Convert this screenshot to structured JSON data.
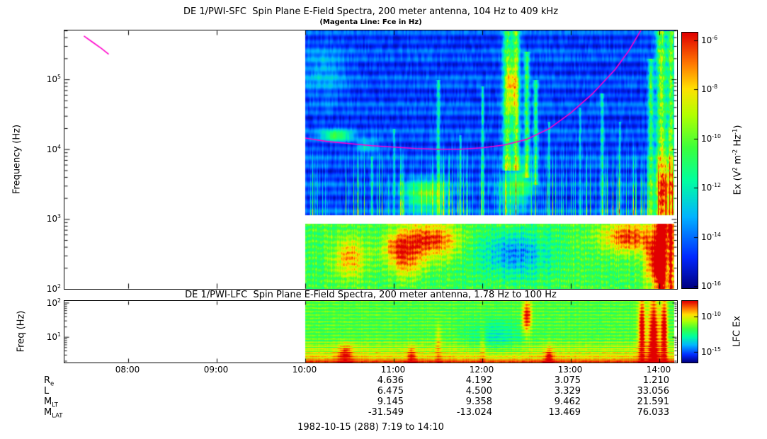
{
  "footer": {
    "date_label": "1982-10-15 (288) 7:19 to 14:10"
  },
  "colormap_stops": [
    [
      0.0,
      0,
      0,
      130
    ],
    [
      0.12,
      0,
      40,
      255
    ],
    [
      0.28,
      0,
      180,
      255
    ],
    [
      0.42,
      0,
      255,
      160
    ],
    [
      0.55,
      60,
      255,
      60
    ],
    [
      0.68,
      180,
      255,
      0
    ],
    [
      0.78,
      255,
      225,
      0
    ],
    [
      0.88,
      255,
      120,
      0
    ],
    [
      1.0,
      225,
      0,
      0
    ]
  ],
  "ephemeris": {
    "rows": [
      {
        "label": "R_e",
        "values": [
          "4.636",
          "4.192",
          "3.075",
          "1.210"
        ]
      },
      {
        "label": "L",
        "values": [
          "6.475",
          "4.500",
          "3.329",
          "33.056"
        ]
      },
      {
        "label": "M_LT",
        "values": [
          "9.145",
          "9.358",
          "9.462",
          "21.591"
        ]
      },
      {
        "label": "M_LAT",
        "values": [
          "-31.549",
          "-13.024",
          "13.469",
          "76.033"
        ]
      }
    ]
  },
  "chart_data": [
    {
      "type": "heatmap",
      "instrument": "DE 1/PWI-SFC",
      "title": "DE 1/PWI-SFC  Spin Plane E-Field Spectra, 200 meter antenna, 104 Hz to 409 kHz",
      "subtitle": "(Magenta Line: Fce in Hz)",
      "ylabel": "Frequency (Hz)",
      "ylim_log10_hz": [
        2.0,
        5.7
      ],
      "ytick_labels": [
        "10^5",
        "10^4",
        "10^3",
        "10^2"
      ],
      "ytick_log10": [
        5,
        4,
        3,
        2
      ],
      "xtick_labels": [
        "08:00",
        "09:00",
        "10:00",
        "11:00",
        "12:00",
        "13:00",
        "14:00"
      ],
      "xtick_hours": [
        8,
        9,
        10,
        11,
        12,
        13,
        14
      ],
      "x_range_hours": [
        7.28,
        14.2
      ],
      "data_hours": [
        10.0,
        14.167
      ],
      "white_gap_log10": [
        2.94,
        3.06
      ],
      "colorbar": {
        "label": "Ex (V^2 m^-2 Hz^-1)",
        "tick_labels": [
          "10^-6",
          "10^-8",
          "10^-10",
          "10^-12",
          "10^-14",
          "10^-16"
        ],
        "range_log10": [
          -16,
          -6
        ]
      },
      "fce_line": {
        "color": "#ff00cc",
        "points_t_logf": [
          [
            10.0,
            4.16
          ],
          [
            10.25,
            4.11
          ],
          [
            10.5,
            4.08
          ],
          [
            10.75,
            4.05
          ],
          [
            11.0,
            4.03
          ],
          [
            11.25,
            4.01
          ],
          [
            11.5,
            4.0
          ],
          [
            11.75,
            4.0
          ],
          [
            12.0,
            4.02
          ],
          [
            12.25,
            4.06
          ],
          [
            12.5,
            4.14
          ],
          [
            12.75,
            4.29
          ],
          [
            13.0,
            4.52
          ],
          [
            13.25,
            4.8
          ],
          [
            13.5,
            5.14
          ],
          [
            13.65,
            5.4
          ],
          [
            13.8,
            5.72
          ]
        ],
        "pre_segment_t_logf": [
          [
            7.5,
            5.62
          ],
          [
            7.6,
            5.53
          ],
          [
            7.7,
            5.44
          ],
          [
            7.78,
            5.36
          ]
        ]
      },
      "render_features": {
        "blobs": [
          [
            10.5,
            2.45,
            0.18,
            0.28,
            0.3
          ],
          [
            11.05,
            2.6,
            0.18,
            0.22,
            0.3
          ],
          [
            11.4,
            2.7,
            0.3,
            0.25,
            0.45
          ],
          [
            11.35,
            3.35,
            0.25,
            0.22,
            0.42
          ],
          [
            11.15,
            2.35,
            0.2,
            0.2,
            0.22
          ],
          [
            12.35,
            2.5,
            0.35,
            0.3,
            -0.3
          ],
          [
            12.45,
            3.5,
            0.12,
            0.3,
            0.28
          ],
          [
            12.3,
            3.4,
            0.15,
            0.3,
            0.22
          ],
          [
            13.65,
            2.75,
            0.3,
            0.22,
            0.42
          ],
          [
            13.95,
            2.4,
            0.12,
            0.35,
            0.45
          ],
          [
            14.05,
            3.4,
            0.12,
            0.5,
            0.4
          ],
          [
            10.35,
            4.2,
            0.18,
            0.08,
            0.4
          ],
          [
            10.7,
            4.05,
            0.12,
            0.1,
            0.22
          ],
          [
            10.2,
            5.1,
            0.25,
            0.35,
            0.14
          ],
          [
            12.33,
            4.9,
            0.07,
            0.4,
            0.35
          ]
        ],
        "streaks": [
          [
            10.75,
            0.015,
            3.9,
            0.25,
            3.06
          ],
          [
            11.0,
            0.012,
            4.3,
            0.28,
            3.06
          ],
          [
            11.5,
            0.02,
            5.0,
            0.33,
            3.06
          ],
          [
            11.75,
            0.012,
            4.2,
            0.28,
            3.06
          ],
          [
            12.0,
            0.015,
            4.9,
            0.33,
            3.06
          ],
          [
            12.28,
            0.05,
            5.7,
            0.5,
            3.7
          ],
          [
            12.38,
            0.04,
            5.7,
            0.55,
            3.7
          ],
          [
            12.5,
            0.03,
            5.4,
            0.45,
            3.6
          ],
          [
            12.6,
            0.025,
            5.0,
            0.4,
            3.5
          ],
          [
            12.75,
            0.012,
            4.4,
            0.28,
            3.06
          ],
          [
            13.1,
            0.012,
            4.6,
            0.25,
            3.06
          ],
          [
            13.35,
            0.02,
            4.8,
            0.3,
            3.06
          ],
          [
            13.55,
            0.012,
            4.4,
            0.25,
            3.06
          ],
          [
            13.9,
            0.03,
            5.3,
            0.45,
            3.06
          ],
          [
            14.02,
            0.06,
            5.7,
            0.6,
            2.0
          ],
          [
            14.13,
            0.04,
            5.7,
            0.55,
            2.0
          ]
        ]
      }
    },
    {
      "type": "heatmap",
      "instrument": "DE 1/PWI-LFC",
      "title": "DE 1/PWI-LFC  Spin Plane E-Field Spectra, 200 meter antenna, 1.78 Hz to 100 Hz",
      "ylabel": "Freq (Hz)",
      "ylim_log10_hz": [
        0.25,
        2.05
      ],
      "ytick_labels": [
        "10^2",
        "10^1"
      ],
      "ytick_log10": [
        2,
        1
      ],
      "data_hours": [
        10.0,
        14.167
      ],
      "colorbar": {
        "label": "LFC Ex",
        "tick_labels": [
          "10^-10",
          "10^-15"
        ]
      },
      "render_features": {
        "blobs": [
          [
            12.15,
            1.0,
            0.3,
            0.5,
            -0.16
          ],
          [
            12.5,
            1.6,
            0.05,
            0.5,
            0.45
          ],
          [
            13.8,
            1.2,
            0.04,
            1.0,
            0.5
          ],
          [
            13.93,
            1.0,
            0.06,
            1.2,
            0.55
          ],
          [
            14.05,
            1.2,
            0.04,
            1.0,
            0.5
          ],
          [
            10.45,
            0.5,
            0.08,
            0.3,
            0.3
          ],
          [
            11.2,
            0.45,
            0.05,
            0.3,
            0.25
          ],
          [
            12.75,
            0.4,
            0.05,
            0.3,
            0.3
          ],
          [
            11.5,
            0.8,
            0.03,
            0.6,
            0.18
          ],
          [
            12.0,
            0.8,
            0.03,
            0.6,
            0.16
          ]
        ]
      }
    }
  ]
}
